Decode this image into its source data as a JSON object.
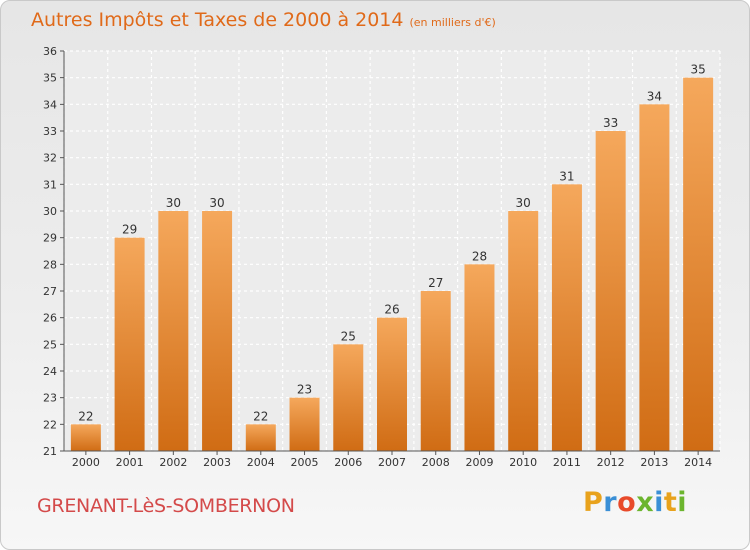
{
  "title": "Autres Impôts et Taxes de 2000 à 2014",
  "title_unit": "(en milliers d'€)",
  "footer_name": "GRENANT-LèS-SOMBERNON",
  "brand": {
    "letters": [
      "P",
      "r",
      "o",
      "x",
      "i",
      "t",
      "i"
    ],
    "colors": [
      "#e8a21c",
      "#3a8fd6",
      "#e84a2a",
      "#6cb52e",
      "#3a8fd6",
      "#e8a21c",
      "#6cb52e"
    ]
  },
  "chart_data": {
    "type": "bar",
    "categories": [
      "2000",
      "2001",
      "2002",
      "2003",
      "2004",
      "2005",
      "2006",
      "2007",
      "2008",
      "2009",
      "2010",
      "2011",
      "2012",
      "2013",
      "2014"
    ],
    "values": [
      22,
      29,
      30,
      30,
      22,
      23,
      25,
      26,
      27,
      28,
      30,
      31,
      33,
      34,
      35
    ],
    "ylim": [
      21,
      36
    ],
    "yticks": [
      21,
      22,
      23,
      24,
      25,
      26,
      27,
      28,
      29,
      30,
      31,
      32,
      33,
      34,
      35,
      36
    ],
    "grid": true,
    "bar_color_top": "#f5a85c",
    "bar_color_bottom": "#d06c14"
  }
}
